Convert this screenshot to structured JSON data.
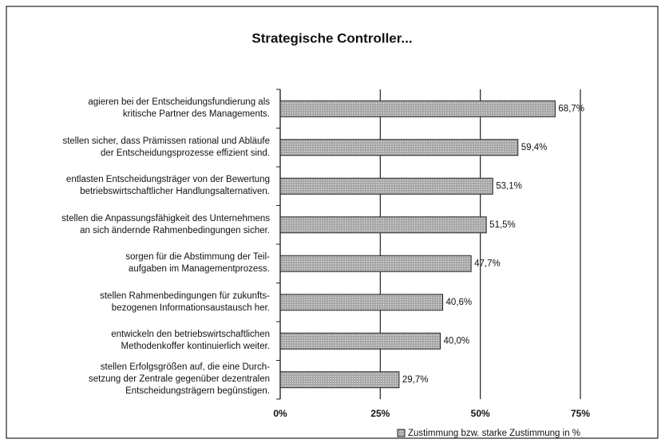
{
  "chart_data": {
    "type": "barh",
    "title": "Strategische Controller...",
    "categories": [
      "agieren bei der Entscheidungsfundierung als\nkritische Partner des Managements.",
      "stellen sicher, dass Prämissen rational und Abläufe\nder Entscheidungsprozesse effizient sind.",
      "entlasten Entscheidungsträger von der Bewertung\nbetriebswirtschaftlicher Handlungsalternativen.",
      "stellen die Anpassungsfähigkeit des Unternehmens\nan sich ändernde Rahmenbedingungen sicher.",
      "sorgen für die Abstimmung der Teil-\naufgaben im Managementprozess.",
      "stellen Rahmenbedingungen für zukunfts-\nbezogenen Informationsaustausch her.",
      "entwickeln den betriebswirtschaftlichen\nMethodenkoffer kontinuierlich weiter.",
      "stellen Erfolgsgrößen auf, die eine Durch-\nsetzung der Zentrale gegenüber dezentralen\nEntscheidungsträgern begünstigen."
    ],
    "series": [
      {
        "name": "Zustimmung bzw. starke Zustimmung in %",
        "color": "#a8a8a8",
        "values": [
          68.7,
          59.4,
          53.1,
          51.5,
          47.7,
          40.6,
          40.0,
          29.7
        ],
        "value_labels": [
          "68,7%",
          "59,4%",
          "53,1%",
          "51,5%",
          "47,7%",
          "40,6%",
          "40,0%",
          "29,7%"
        ]
      }
    ],
    "xlim": [
      0,
      75
    ],
    "xticks": [
      {
        "value": 0,
        "label": "0%"
      },
      {
        "value": 25,
        "label": "25%"
      },
      {
        "value": 50,
        "label": "50%"
      },
      {
        "value": 75,
        "label": "75%"
      }
    ],
    "grid": true,
    "legend": "bottom-right"
  }
}
